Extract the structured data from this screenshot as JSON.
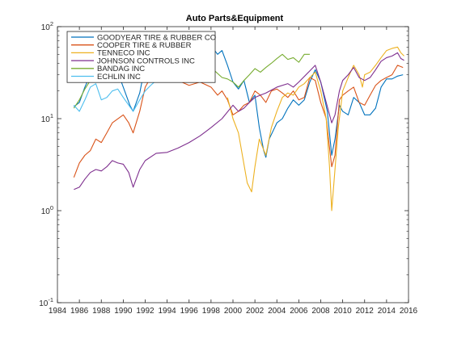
{
  "chart_data": {
    "type": "line",
    "title": "Auto Parts&Equipment",
    "xlabel": "",
    "ylabel": "",
    "xlim": [
      1984,
      2016
    ],
    "ylim": [
      0.1,
      100
    ],
    "yscale": "log",
    "grid": false,
    "legend_position": "top-left",
    "x_ticks": [
      "1984",
      "1986",
      "1988",
      "1990",
      "1992",
      "1994",
      "1996",
      "1998",
      "2000",
      "2002",
      "2004",
      "2006",
      "2008",
      "2010",
      "2012",
      "2014",
      "2016"
    ],
    "y_tick_exponents": [
      "-1",
      "0",
      "1",
      "2"
    ],
    "y_tick_base": "10",
    "series": [
      {
        "name": "GOODYEAR TIRE & RUBBER CO",
        "color": "#0072bd",
        "points": [
          [
            1985.5,
            13.5
          ],
          [
            1986,
            15
          ],
          [
            1986.5,
            22
          ],
          [
            1987,
            30
          ],
          [
            1987.5,
            40
          ],
          [
            1987.8,
            25
          ],
          [
            1988.5,
            30
          ],
          [
            1989,
            33
          ],
          [
            1989.5,
            32
          ],
          [
            1990,
            22
          ],
          [
            1990.6,
            14
          ],
          [
            1990.9,
            12
          ],
          [
            1991.5,
            19
          ],
          [
            1992,
            38
          ],
          [
            1992.5,
            45
          ],
          [
            1993,
            46
          ],
          [
            1994,
            45
          ],
          [
            1994.6,
            35
          ],
          [
            1995,
            36
          ],
          [
            1996,
            43
          ],
          [
            1997,
            55
          ],
          [
            1998,
            62
          ],
          [
            1998.6,
            50
          ],
          [
            1999,
            55
          ],
          [
            1999.5,
            38
          ],
          [
            2000,
            25
          ],
          [
            2000.5,
            21
          ],
          [
            2001,
            26
          ],
          [
            2001.5,
            15
          ],
          [
            2002,
            18
          ],
          [
            2002.4,
            8
          ],
          [
            2002.8,
            4.5
          ],
          [
            2003,
            3.8
          ],
          [
            2003.3,
            6
          ],
          [
            2003.8,
            8
          ],
          [
            2004,
            9
          ],
          [
            2004.5,
            10
          ],
          [
            2005,
            13
          ],
          [
            2005.5,
            16
          ],
          [
            2006,
            14
          ],
          [
            2006.5,
            16
          ],
          [
            2007,
            25
          ],
          [
            2007.5,
            34
          ],
          [
            2008,
            25
          ],
          [
            2008.6,
            12
          ],
          [
            2009,
            4
          ],
          [
            2009.3,
            6
          ],
          [
            2009.7,
            14
          ],
          [
            2010,
            12
          ],
          [
            2010.5,
            11
          ],
          [
            2011,
            17
          ],
          [
            2011.5,
            15
          ],
          [
            2012,
            11
          ],
          [
            2012.5,
            11
          ],
          [
            2013,
            13
          ],
          [
            2013.5,
            22
          ],
          [
            2014,
            27
          ],
          [
            2014.5,
            27
          ],
          [
            2015,
            29
          ],
          [
            2015.5,
            30
          ]
        ]
      },
      {
        "name": "COOPER TIRE & RUBBER",
        "color": "#d95319",
        "points": [
          [
            1985.5,
            2.3
          ],
          [
            1986,
            3.3
          ],
          [
            1986.5,
            4.0
          ],
          [
            1987,
            4.5
          ],
          [
            1987.5,
            6
          ],
          [
            1988,
            5.5
          ],
          [
            1988.5,
            7
          ],
          [
            1989,
            9
          ],
          [
            1990,
            11
          ],
          [
            1990.5,
            9
          ],
          [
            1990.9,
            7
          ],
          [
            1991.5,
            12
          ],
          [
            1992,
            22
          ],
          [
            1992.5,
            28
          ],
          [
            1993,
            33
          ],
          [
            1994,
            28
          ],
          [
            1995,
            26
          ],
          [
            1996,
            23
          ],
          [
            1997,
            25
          ],
          [
            1998,
            22
          ],
          [
            1998.6,
            18
          ],
          [
            1999,
            20
          ],
          [
            1999.5,
            16
          ],
          [
            2000,
            11
          ],
          [
            2000.5,
            12
          ],
          [
            2001,
            14
          ],
          [
            2001.5,
            15
          ],
          [
            2002,
            20
          ],
          [
            2002.5,
            18
          ],
          [
            2003,
            15
          ],
          [
            2003.5,
            20
          ],
          [
            2004,
            21
          ],
          [
            2004.5,
            19
          ],
          [
            2005,
            17
          ],
          [
            2005.5,
            20
          ],
          [
            2006,
            16
          ],
          [
            2006.5,
            17
          ],
          [
            2007,
            28
          ],
          [
            2007.5,
            26
          ],
          [
            2008,
            15
          ],
          [
            2008.5,
            10
          ],
          [
            2009,
            3
          ],
          [
            2009.3,
            4
          ],
          [
            2009.7,
            16
          ],
          [
            2010,
            18
          ],
          [
            2010.5,
            20
          ],
          [
            2011,
            22
          ],
          [
            2011.5,
            15
          ],
          [
            2012,
            14
          ],
          [
            2012.5,
            18
          ],
          [
            2013,
            23
          ],
          [
            2013.5,
            26
          ],
          [
            2014,
            28
          ],
          [
            2014.5,
            30
          ],
          [
            2015,
            38
          ],
          [
            2015.5,
            36
          ]
        ]
      },
      {
        "name": "TENNECO INC",
        "color": "#edb120",
        "points": [
          [
            1999.5,
            17
          ],
          [
            2000,
            10
          ],
          [
            2000.5,
            7
          ],
          [
            2001,
            3.2
          ],
          [
            2001.3,
            2
          ],
          [
            2001.7,
            1.6
          ],
          [
            2002,
            3
          ],
          [
            2002.4,
            6
          ],
          [
            2003,
            4
          ],
          [
            2003.5,
            8
          ],
          [
            2004,
            12
          ],
          [
            2004.5,
            17
          ],
          [
            2005,
            19
          ],
          [
            2005.5,
            18
          ],
          [
            2006,
            22
          ],
          [
            2006.5,
            24
          ],
          [
            2007,
            28
          ],
          [
            2007.5,
            32
          ],
          [
            2008,
            20
          ],
          [
            2008.5,
            10
          ],
          [
            2008.8,
            3
          ],
          [
            2009,
            1.0
          ],
          [
            2009.2,
            2
          ],
          [
            2009.6,
            8
          ],
          [
            2010,
            20
          ],
          [
            2010.5,
            28
          ],
          [
            2011,
            38
          ],
          [
            2011.5,
            30
          ],
          [
            2011.8,
            22
          ],
          [
            2012,
            30
          ],
          [
            2012.5,
            32
          ],
          [
            2013,
            38
          ],
          [
            2013.5,
            46
          ],
          [
            2014,
            55
          ],
          [
            2014.5,
            58
          ],
          [
            2015,
            60
          ],
          [
            2015.3,
            52
          ],
          [
            2015.6,
            48
          ]
        ]
      },
      {
        "name": "JOHNSON CONTROLS INC",
        "color": "#7e2f8e",
        "points": [
          [
            1985.5,
            1.7
          ],
          [
            1986,
            1.8
          ],
          [
            1986.5,
            2.2
          ],
          [
            1987,
            2.6
          ],
          [
            1987.5,
            2.8
          ],
          [
            1988,
            2.7
          ],
          [
            1988.5,
            3.0
          ],
          [
            1989,
            3.5
          ],
          [
            1989.5,
            3.3
          ],
          [
            1990,
            3.2
          ],
          [
            1990.5,
            2.6
          ],
          [
            1990.9,
            1.8
          ],
          [
            1991.5,
            2.8
          ],
          [
            1992,
            3.5
          ],
          [
            1993,
            4.2
          ],
          [
            1994,
            4.3
          ],
          [
            1995,
            4.8
          ],
          [
            1996,
            5.5
          ],
          [
            1997,
            6.5
          ],
          [
            1998,
            8
          ],
          [
            1999,
            10
          ],
          [
            2000,
            14
          ],
          [
            2000.5,
            12
          ],
          [
            2001,
            13
          ],
          [
            2001.5,
            15
          ],
          [
            2002,
            17
          ],
          [
            2002.5,
            18
          ],
          [
            2003,
            19
          ],
          [
            2004,
            22
          ],
          [
            2005,
            24
          ],
          [
            2005.5,
            22
          ],
          [
            2006,
            25
          ],
          [
            2007,
            33
          ],
          [
            2007.5,
            38
          ],
          [
            2008,
            25
          ],
          [
            2008.5,
            15
          ],
          [
            2009,
            9
          ],
          [
            2009.3,
            11
          ],
          [
            2009.7,
            20
          ],
          [
            2010,
            26
          ],
          [
            2010.5,
            30
          ],
          [
            2011,
            36
          ],
          [
            2011.5,
            28
          ],
          [
            2012,
            26
          ],
          [
            2012.5,
            28
          ],
          [
            2013,
            34
          ],
          [
            2013.5,
            42
          ],
          [
            2014,
            46
          ],
          [
            2014.5,
            48
          ],
          [
            2015,
            52
          ],
          [
            2015.3,
            45
          ],
          [
            2015.6,
            43
          ]
        ]
      },
      {
        "name": "BANDAG INC",
        "color": "#77ac30",
        "points": [
          [
            1985.5,
            13
          ],
          [
            1986,
            16
          ],
          [
            1986.5,
            21
          ],
          [
            1987,
            26
          ],
          [
            1987.5,
            30
          ],
          [
            1988,
            27
          ],
          [
            1988.5,
            33
          ],
          [
            1989,
            38
          ],
          [
            1989.5,
            42
          ],
          [
            1990,
            40
          ],
          [
            1990.5,
            35
          ],
          [
            1991,
            30
          ],
          [
            1991.5,
            42
          ],
          [
            1992,
            55
          ],
          [
            1992.5,
            60
          ],
          [
            1993,
            55
          ],
          [
            1994,
            50
          ],
          [
            1995,
            47
          ],
          [
            1996,
            45
          ],
          [
            1997,
            40
          ],
          [
            1998,
            36
          ],
          [
            1999,
            28
          ],
          [
            1999.5,
            27
          ],
          [
            2000,
            25
          ],
          [
            2000.5,
            22
          ],
          [
            2001,
            26
          ],
          [
            2001.5,
            30
          ],
          [
            2002,
            35
          ],
          [
            2002.5,
            32
          ],
          [
            2003,
            36
          ],
          [
            2003.5,
            40
          ],
          [
            2004,
            45
          ],
          [
            2004.5,
            50
          ],
          [
            2005,
            44
          ],
          [
            2005.5,
            46
          ],
          [
            2006,
            41
          ],
          [
            2006.5,
            50
          ],
          [
            2007,
            50
          ]
        ]
      },
      {
        "name": "ECHLIN INC",
        "color": "#4dbeee",
        "points": [
          [
            1985.5,
            14
          ],
          [
            1986,
            12
          ],
          [
            1986.5,
            16
          ],
          [
            1987,
            22
          ],
          [
            1987.5,
            24
          ],
          [
            1988,
            16
          ],
          [
            1988.5,
            17
          ],
          [
            1989,
            20
          ],
          [
            1989.5,
            21
          ],
          [
            1990,
            17
          ],
          [
            1990.5,
            14
          ],
          [
            1990.9,
            12
          ],
          [
            1991.5,
            16
          ],
          [
            1992,
            20
          ],
          [
            1992.5,
            23
          ],
          [
            1993,
            26
          ],
          [
            1994,
            28
          ],
          [
            1994.5,
            26
          ],
          [
            1995,
            27
          ],
          [
            1996,
            31
          ],
          [
            1997,
            35
          ],
          [
            1997.5,
            36
          ],
          [
            1998,
            37
          ]
        ]
      }
    ]
  }
}
